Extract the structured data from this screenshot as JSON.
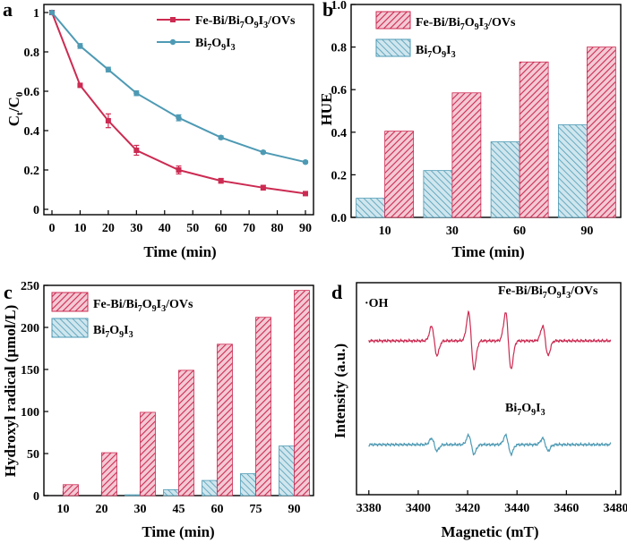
{
  "colors": {
    "fe": "#cc2b52",
    "bi": "#4e9ab4",
    "fe_hatch_bg": "#f3c9d4",
    "bi_hatch_bg": "#cfe6ee"
  },
  "chart_data": [
    {
      "panel": "a",
      "type": "line",
      "xlabel": "Time (min)",
      "ylabel_main": "C",
      "ylabel_sub1": "t",
      "ylabel_mid": "/C",
      "ylabel_sub2": "0",
      "xlim": [
        0,
        90
      ],
      "ylim": [
        0,
        1
      ],
      "xticks": [
        "0",
        "10",
        "20",
        "30",
        "40",
        "50",
        "60",
        "70",
        "80",
        "90"
      ],
      "xtick_values": [
        0,
        10,
        20,
        30,
        40,
        50,
        60,
        70,
        80,
        90
      ],
      "yticks": [
        "0",
        "0.2",
        "0.4",
        "0.6",
        "0.8",
        "1"
      ],
      "ytick_values": [
        0,
        0.2,
        0.4,
        0.6,
        0.8,
        1
      ],
      "legend_position": "top-right",
      "series": [
        {
          "name_main": "Fe-Bi/Bi",
          "name_s1": "7",
          "name_m1": "O",
          "name_s2": "9",
          "name_m2": "I",
          "name_s3": "3",
          "name_tail": "/OVs",
          "color": "#cc2b52",
          "marker": "square",
          "x": [
            0,
            10,
            20,
            30,
            45,
            60,
            75,
            90
          ],
          "y": [
            1.0,
            0.63,
            0.45,
            0.3,
            0.2,
            0.145,
            0.11,
            0.08
          ],
          "err": [
            0,
            0,
            0.035,
            0.025,
            0.02,
            0.012,
            0.012,
            0.01
          ]
        },
        {
          "name_main": "Bi",
          "name_s1": "7",
          "name_m1": "O",
          "name_s2": "9",
          "name_m2": "I",
          "name_s3": "3",
          "name_tail": "",
          "color": "#4e9ab4",
          "marker": "circle",
          "x": [
            0,
            10,
            20,
            30,
            45,
            60,
            75,
            90
          ],
          "y": [
            1.0,
            0.83,
            0.71,
            0.59,
            0.465,
            0.365,
            0.29,
            0.24
          ],
          "err": [
            0,
            0.012,
            0.012,
            0.012,
            0.015,
            0.008,
            0.006,
            0.006
          ]
        }
      ]
    },
    {
      "panel": "b",
      "type": "bar",
      "xlabel": "Time (min)",
      "ylabel": "HUE",
      "categories": [
        "10",
        "30",
        "60",
        "90"
      ],
      "ylim": [
        0,
        1
      ],
      "yticks": [
        "0.0",
        "0.2",
        "0.4",
        "0.6",
        "0.8",
        "1.0"
      ],
      "ytick_values": [
        0,
        0.2,
        0.4,
        0.6,
        0.8,
        1
      ],
      "legend_position": "top-left",
      "series": [
        {
          "name_main": "Fe-Bi/Bi",
          "name_s1": "7",
          "name_m1": "O",
          "name_s2": "9",
          "name_m2": "I",
          "name_s3": "3",
          "name_tail": "/OVs",
          "color": "#cc2b52",
          "values": [
            0.405,
            0.585,
            0.73,
            0.8
          ]
        },
        {
          "name_main": "Bi",
          "name_s1": "7",
          "name_m1": "O",
          "name_s2": "9",
          "name_m2": "I",
          "name_s3": "3",
          "name_tail": "",
          "color": "#4e9ab4",
          "values": [
            0.09,
            0.22,
            0.355,
            0.435
          ]
        }
      ]
    },
    {
      "panel": "c",
      "type": "bar",
      "xlabel": "Time (min)",
      "ylabel": "Hydroxyl radical (μmol/L)",
      "categories": [
        "10",
        "20",
        "30",
        "45",
        "60",
        "75",
        "90"
      ],
      "ylim": [
        0,
        250
      ],
      "yticks": [
        "0",
        "50",
        "100",
        "150",
        "200",
        "250"
      ],
      "ytick_values": [
        0,
        50,
        100,
        150,
        200,
        250
      ],
      "legend_position": "top-left",
      "series": [
        {
          "name_main": "Fe-Bi/Bi",
          "name_s1": "7",
          "name_m1": "O",
          "name_s2": "9",
          "name_m2": "I",
          "name_s3": "3",
          "name_tail": "/OVs",
          "color": "#cc2b52",
          "values": [
            13,
            51,
            99,
            149,
            180,
            212,
            244
          ]
        },
        {
          "name_main": "Bi",
          "name_s1": "7",
          "name_m1": "O",
          "name_s2": "9",
          "name_m2": "I",
          "name_s3": "3",
          "name_tail": "",
          "color": "#4e9ab4",
          "values": [
            0,
            0,
            1,
            7,
            18,
            26,
            59
          ]
        }
      ]
    },
    {
      "panel": "d",
      "type": "line",
      "xlabel": "Magnetic (mT)",
      "ylabel": "Intensity (a.u.)",
      "xlim": [
        3375,
        3482
      ],
      "xticks": [
        "3380",
        "3400",
        "3420",
        "3440",
        "3460",
        "3480"
      ],
      "xtick_values": [
        3380,
        3400,
        3420,
        3440,
        3460,
        3480
      ],
      "annotation": "·OH",
      "peak_fields": [
        3406.5,
        3421.5,
        3436.5,
        3451.5
      ],
      "series": [
        {
          "name_main": "Fe-Bi/Bi",
          "name_s1": "7",
          "name_m1": "O",
          "name_s2": "9",
          "name_m2": "I",
          "name_s3": "3",
          "name_tail": "/OVs",
          "color": "#cc2b52",
          "x_range": [
            3380,
            3478
          ],
          "baseline": 1.0,
          "peak_amplitudes": [
            0.14,
            0.27,
            0.27,
            0.14
          ]
        },
        {
          "name_main": "Bi",
          "name_s1": "7",
          "name_m1": "O",
          "name_s2": "9",
          "name_m2": "I",
          "name_s3": "3",
          "name_tail": "",
          "color": "#4e9ab4",
          "x_range": [
            3380,
            3478
          ],
          "baseline": 0.0,
          "peak_amplitudes": [
            0.06,
            0.09,
            0.09,
            0.06
          ]
        }
      ]
    }
  ]
}
